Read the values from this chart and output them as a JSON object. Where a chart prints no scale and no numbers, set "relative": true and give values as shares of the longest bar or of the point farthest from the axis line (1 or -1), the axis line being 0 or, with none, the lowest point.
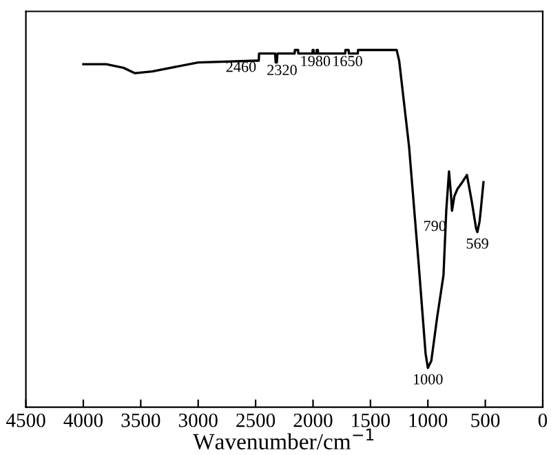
{
  "chart_data": {
    "type": "line",
    "relative": true,
    "xlabel": "Wavenumber/cm$^{−1}$",
    "xlim": [
      4500,
      0
    ],
    "xticks": [
      4500,
      4000,
      3500,
      3000,
      2500,
      2000,
      1500,
      1000,
      500,
      0
    ],
    "tick_labels": "x",
    "grid": false,
    "marker": "none",
    "line_style": "solid",
    "series": [
      {
        "color": "#000000",
        "x": [
          4000,
          3800,
          3650,
          3550,
          3400,
          3000,
          2500,
          2472,
          2470,
          2330,
          2325,
          2315,
          2310,
          2160,
          2158,
          2130,
          2128,
          2005,
          2003,
          1995,
          1993,
          1970,
          1968,
          1958,
          1956,
          1720,
          1718,
          1690,
          1688,
          1610,
          1608,
          1272,
          1250,
          1164,
          1080,
          1020,
          1000,
          970,
          920,
          864,
          840,
          816,
          800,
          790,
          770,
          744,
          700,
          660,
          620,
          580,
          569,
          550,
          540,
          516
        ],
        "values": [
          0.96,
          0.96,
          0.95,
          0.935,
          0.94,
          0.965,
          0.97,
          0.97,
          0.99,
          0.99,
          0.965,
          0.965,
          0.99,
          0.99,
          1.0,
          1.0,
          0.99,
          0.99,
          1.0,
          1.0,
          0.99,
          0.99,
          1.0,
          1.0,
          0.99,
          0.99,
          1.0,
          1.0,
          0.99,
          0.99,
          1.0,
          1.0,
          0.97,
          0.73,
          0.4,
          0.15,
          0.11,
          0.13,
          0.25,
          0.37,
          0.55,
          0.66,
          0.6,
          0.55,
          0.59,
          0.61,
          0.63,
          0.65,
          0.58,
          0.5,
          0.49,
          0.52,
          0.55,
          0.63
        ]
      }
    ],
    "annotations": [
      {
        "text": "2460",
        "x": 2460,
        "y": 0.99
      },
      {
        "text": "2320",
        "x": 2320,
        "y": 0.965
      },
      {
        "text": "1980",
        "x": 1980,
        "y": 0.99
      },
      {
        "text": "1650",
        "x": 1650,
        "y": 0.99
      },
      {
        "text": "1000",
        "x": 1000,
        "y": 0.11
      },
      {
        "text": "790",
        "x": 790,
        "y": 0.55
      },
      {
        "text": "569",
        "x": 569,
        "y": 0.49
      }
    ]
  }
}
